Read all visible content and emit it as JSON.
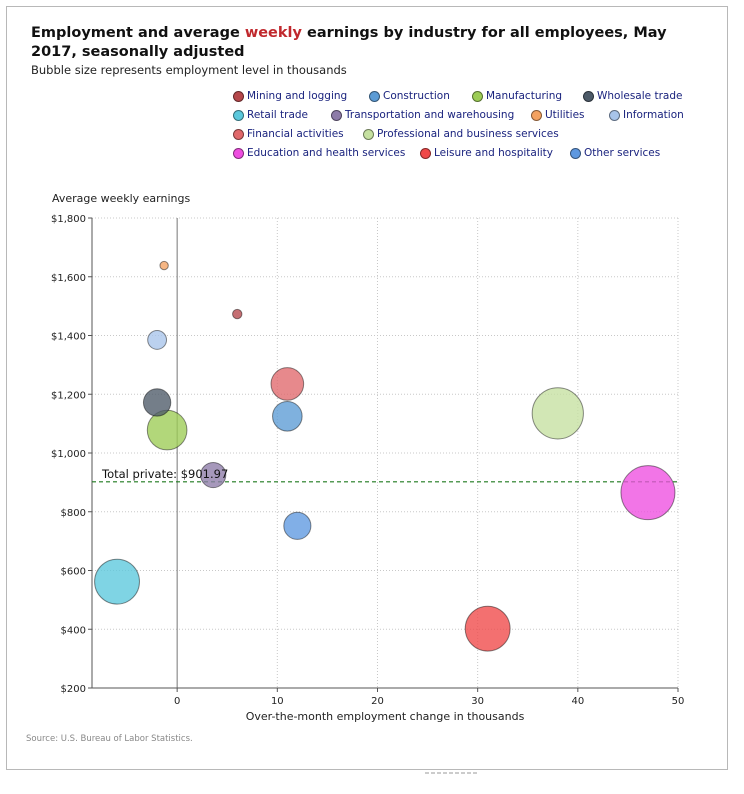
{
  "header": {
    "title_before": "Employment and average ",
    "title_highlight": "weekly",
    "title_after": " earnings by industry for all employees, May 2017, seasonally adjusted",
    "subtitle": "Bubble size represents employment level in thousands"
  },
  "source": "Source: U.S. Bureau of Labor Statistics.",
  "colors": {
    "title_highlight": "#c0282d",
    "reference_line": "#1f7a1f",
    "legend_text": "#1a237e"
  },
  "chart_data": {
    "type": "scatter",
    "bubble": true,
    "title": "Employment and average weekly earnings by industry for all employees, May 2017, seasonally adjusted",
    "subtitle": "Bubble size represents employment level in thousands",
    "xlabel": "Over-the-month employment change in thousands",
    "ylabel": "Average weekly earnings",
    "xlim": [
      -8.5,
      50
    ],
    "ylim": [
      200,
      1800
    ],
    "x_ticks": [
      0,
      10,
      20,
      30,
      40,
      50
    ],
    "x_tick_labels": [
      "0",
      "10",
      "20",
      "30",
      "40",
      "50"
    ],
    "y_ticks": [
      200,
      400,
      600,
      800,
      1000,
      1200,
      1400,
      1600,
      1800
    ],
    "y_tick_labels": [
      "$200",
      "$400",
      "$600",
      "$800",
      "$1,000",
      "$1,200",
      "$1,400",
      "$1,600",
      "$1,800"
    ],
    "grid": true,
    "legend_position": "top",
    "reference_line": {
      "y": 901.97,
      "label": "Total private: $901.97"
    },
    "series": [
      {
        "name": "Mining and logging",
        "x": 6,
        "y": 1473,
        "employment": 700,
        "color": "#b5474b"
      },
      {
        "name": "Construction",
        "x": 11,
        "y": 1125,
        "employment": 6900,
        "color": "#5b9bd5"
      },
      {
        "name": "Manufacturing",
        "x": -1,
        "y": 1078,
        "employment": 12400,
        "color": "#9ccc55"
      },
      {
        "name": "Wholesale trade",
        "x": -2,
        "y": 1172,
        "employment": 5900,
        "color": "#4d5a68"
      },
      {
        "name": "Retail trade",
        "x": -6,
        "y": 562,
        "employment": 15900,
        "color": "#5bc8dc"
      },
      {
        "name": "Transportation and warehousing",
        "x": 3.6,
        "y": 925,
        "employment": 5000,
        "color": "#8d7ba8"
      },
      {
        "name": "Utilities",
        "x": -1.3,
        "y": 1638,
        "employment": 550,
        "color": "#f4a261"
      },
      {
        "name": "Information",
        "x": -2,
        "y": 1385,
        "employment": 2800,
        "color": "#a8c4ea"
      },
      {
        "name": "Financial activities",
        "x": 11,
        "y": 1235,
        "employment": 8400,
        "color": "#e0686b"
      },
      {
        "name": "Professional and business services",
        "x": 38,
        "y": 1135,
        "employment": 20700,
        "color": "#c5e0a0"
      },
      {
        "name": "Education and health services",
        "x": 47,
        "y": 865,
        "employment": 23000,
        "color": "#ee4ee0"
      },
      {
        "name": "Leisure and hospitality",
        "x": 31,
        "y": 402,
        "employment": 15900,
        "color": "#f04848"
      },
      {
        "name": "Other services",
        "x": 12,
        "y": 752,
        "employment": 5800,
        "color": "#5e98e0"
      }
    ]
  }
}
